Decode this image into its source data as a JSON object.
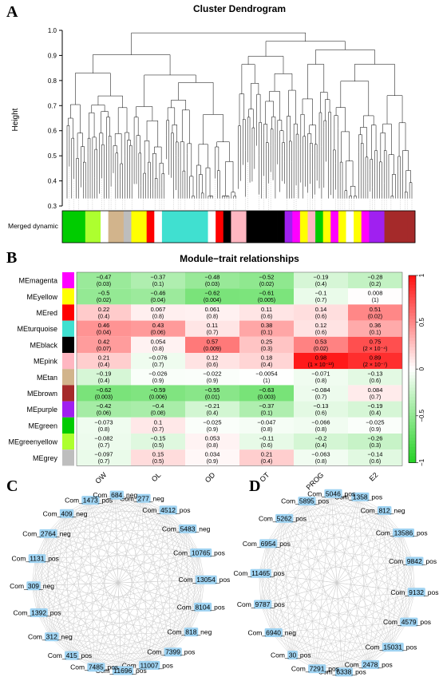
{
  "panelA": {
    "letter": "A",
    "title": "Cluster Dendrogram",
    "ylabel": "Height",
    "yticks": [
      "1.0",
      "0.9",
      "0.8",
      "0.7",
      "0.6",
      "0.5",
      "0.4",
      "0.3"
    ],
    "strip_label": "Merged dynamic",
    "strip_colors": [
      "#00cc00",
      "#00cc00",
      "#00cc00",
      "#adff2f",
      "#adff2f",
      "#ffffff",
      "#d2b48c",
      "#d2b48c",
      "#bdbdbd",
      "#ffff00",
      "#ffff00",
      "#ff0000",
      "#ffffff",
      "#40e0d0",
      "#40e0d0",
      "#40e0d0",
      "#40e0d0",
      "#40e0d0",
      "#40e0d0",
      "#ffffff",
      "#ff0000",
      "#000000",
      "#ffb6c1",
      "#ffb6c1",
      "#000000",
      "#000000",
      "#000000",
      "#000000",
      "#000000",
      "#a020f0",
      "#ff00ff",
      "#ffff00",
      "#ffb6c1",
      "#00cc00",
      "#ffff00",
      "#ff00ff",
      "#ffff00",
      "#ffffff",
      "#ffff00",
      "#ff00ff",
      "#a020f0",
      "#a020f0",
      "#a52a2a",
      "#a52a2a",
      "#a52a2a",
      "#a52a2a"
    ]
  },
  "panelB": {
    "letter": "B",
    "title": "Module−trait relationships",
    "traits": [
      "OW",
      "OL",
      "OD",
      "OT",
      "PROG",
      "E2"
    ],
    "legend_ticks": [
      "1",
      "0.5",
      "0",
      "−0.5",
      "−1"
    ],
    "modules": [
      {
        "name": "MEmagenta",
        "color": "#ff00ff",
        "cells": [
          {
            "r": -0.47,
            "p": "(0.03)"
          },
          {
            "r": -0.37,
            "p": "(0.1)"
          },
          {
            "r": -0.48,
            "p": "(0.03)"
          },
          {
            "r": -0.52,
            "p": "(0.02)"
          },
          {
            "r": -0.19,
            "p": "(0.4)"
          },
          {
            "r": -0.28,
            "p": "(0.2)"
          }
        ]
      },
      {
        "name": "MEyellow",
        "color": "#ffff00",
        "cells": [
          {
            "r": -0.5,
            "p": "(0.02)"
          },
          {
            "r": -0.46,
            "p": "(0.04)"
          },
          {
            "r": -0.62,
            "p": "(0.004)"
          },
          {
            "r": -0.61,
            "p": "(0.005)"
          },
          {
            "r": -0.1,
            "p": "(0.7)"
          },
          {
            "r": 0.008,
            "p": "(1)"
          }
        ]
      },
      {
        "name": "MEred",
        "color": "#ff0000",
        "cells": [
          {
            "r": 0.22,
            "p": "(0.4)"
          },
          {
            "r": 0.067,
            "p": "(0.8)"
          },
          {
            "r": 0.061,
            "p": "(0.8)"
          },
          {
            "r": 0.11,
            "p": "(0.6)"
          },
          {
            "r": 0.14,
            "p": "(0.6)"
          },
          {
            "r": 0.51,
            "p": "(0.02)"
          }
        ]
      },
      {
        "name": "MEturquoise",
        "color": "#40e0d0",
        "cells": [
          {
            "r": 0.46,
            "p": "(0.04)"
          },
          {
            "r": 0.43,
            "p": "(0.06)"
          },
          {
            "r": 0.11,
            "p": "(0.7)"
          },
          {
            "r": 0.38,
            "p": "(0.1)"
          },
          {
            "r": 0.12,
            "p": "(0.6)"
          },
          {
            "r": 0.36,
            "p": "(0.1)"
          }
        ]
      },
      {
        "name": "MEblack",
        "color": "#000000",
        "cells": [
          {
            "r": 0.42,
            "p": "(0.07)"
          },
          {
            "r": 0.054,
            "p": "(0.8)"
          },
          {
            "r": 0.57,
            "p": "(0.009)"
          },
          {
            "r": 0.25,
            "p": "(0.3)"
          },
          {
            "r": 0.53,
            "p": "(0.02)"
          },
          {
            "r": 0.75,
            "p": "(2 × 10⁻⁴)"
          }
        ]
      },
      {
        "name": "MEpink",
        "color": "#ffb6c1",
        "cells": [
          {
            "r": 0.21,
            "p": "(0.4)"
          },
          {
            "r": -0.076,
            "p": "(0.7)"
          },
          {
            "r": 0.12,
            "p": "(0.6)"
          },
          {
            "r": 0.18,
            "p": "(0.4)"
          },
          {
            "r": 0.98,
            "p": "(1 × 10⁻¹³)"
          },
          {
            "r": 0.89,
            "p": "(2 × 10⁻⁷)"
          }
        ]
      },
      {
        "name": "MEtan",
        "color": "#d2b48c",
        "cells": [
          {
            "r": -0.19,
            "p": "(0.4)"
          },
          {
            "r": -0.026,
            "p": "(0.9)"
          },
          {
            "r": -0.022,
            "p": "(0.9)"
          },
          {
            "r": -0.0054,
            "p": "(1)"
          },
          {
            "r": -0.071,
            "p": "(0.8)"
          },
          {
            "r": -0.13,
            "p": "(0.6)"
          }
        ]
      },
      {
        "name": "MEbrown",
        "color": "#a52a2a",
        "cells": [
          {
            "r": -0.62,
            "p": "(0.003)"
          },
          {
            "r": -0.59,
            "p": "(0.006)"
          },
          {
            "r": -0.55,
            "p": "(0.01)"
          },
          {
            "r": -0.63,
            "p": "(0.003)"
          },
          {
            "r": -0.084,
            "p": "(0.7)"
          },
          {
            "r": 0.084,
            "p": "(0.7)"
          }
        ]
      },
      {
        "name": "MEpurple",
        "color": "#a020f0",
        "cells": [
          {
            "r": -0.42,
            "p": "(0.06)"
          },
          {
            "r": -0.4,
            "p": "(0.08)"
          },
          {
            "r": -0.21,
            "p": "(0.4)"
          },
          {
            "r": -0.37,
            "p": "(0.1)"
          },
          {
            "r": -0.13,
            "p": "(0.6)"
          },
          {
            "r": -0.19,
            "p": "(0.4)"
          }
        ]
      },
      {
        "name": "MEgreen",
        "color": "#00cc00",
        "cells": [
          {
            "r": -0.073,
            "p": "(0.8)"
          },
          {
            "r": 0.1,
            "p": "(0.7)"
          },
          {
            "r": -0.025,
            "p": "(0.9)"
          },
          {
            "r": -0.047,
            "p": "(0.8)"
          },
          {
            "r": -0.066,
            "p": "(0.8)"
          },
          {
            "r": -0.025,
            "p": "(0.9)"
          }
        ]
      },
      {
        "name": "MEgreenyellow",
        "color": "#adff2f",
        "cells": [
          {
            "r": -0.082,
            "p": "(0.7)"
          },
          {
            "r": -0.15,
            "p": "(0.5)"
          },
          {
            "r": 0.053,
            "p": "(0.8)"
          },
          {
            "r": -0.11,
            "p": "(0.6)"
          },
          {
            "r": -0.2,
            "p": "(0.4)"
          },
          {
            "r": -0.26,
            "p": "(0.3)"
          }
        ]
      },
      {
        "name": "MEgrey",
        "color": "#bebebe",
        "cells": [
          {
            "r": -0.097,
            "p": "(0.7)"
          },
          {
            "r": 0.15,
            "p": "(0.5)"
          },
          {
            "r": 0.034,
            "p": "(0.9)"
          },
          {
            "r": 0.21,
            "p": "(0.4)"
          },
          {
            "r": -0.063,
            "p": "(0.8)"
          },
          {
            "r": -0.14,
            "p": "(0.6)"
          }
        ]
      }
    ]
  },
  "panelC": {
    "letter": "C",
    "nodes": [
      "Com_277_neg",
      "Com_4512_pos",
      "Com_5483_neg",
      "Com_10765_pos",
      "Com_13054_pos",
      "Com_8104_pos",
      "Com_818_neg",
      "Com_7399_pos",
      "Com_11007_pos",
      "Com_11696_pos",
      "Com_7485_pos",
      "Com_415_pos",
      "Com_312_neg",
      "Com_1392_pos",
      "Com_309_neg",
      "Com_1131_pos",
      "Com_2764_neg",
      "Com_409_neg",
      "Com_1473_pos",
      "Com_684_neg"
    ]
  },
  "panelD": {
    "letter": "D",
    "nodes": [
      "Com_1358_pos",
      "Com_812_neg",
      "Com_13586_pos",
      "Com_9842_pos",
      "Com_9132_pos",
      "Com_4579_pos",
      "Com_15031_pos",
      "Com_2478_pos",
      "Com_6338_pos",
      "Com_7291_pos",
      "Com_30_pos",
      "Com_6940_neg",
      "Com_9787_pos",
      "Com_11465_pos",
      "Com_6954_pos",
      "Com_5262_pos",
      "Com_5895_pos",
      "Com_5046_pos"
    ]
  }
}
